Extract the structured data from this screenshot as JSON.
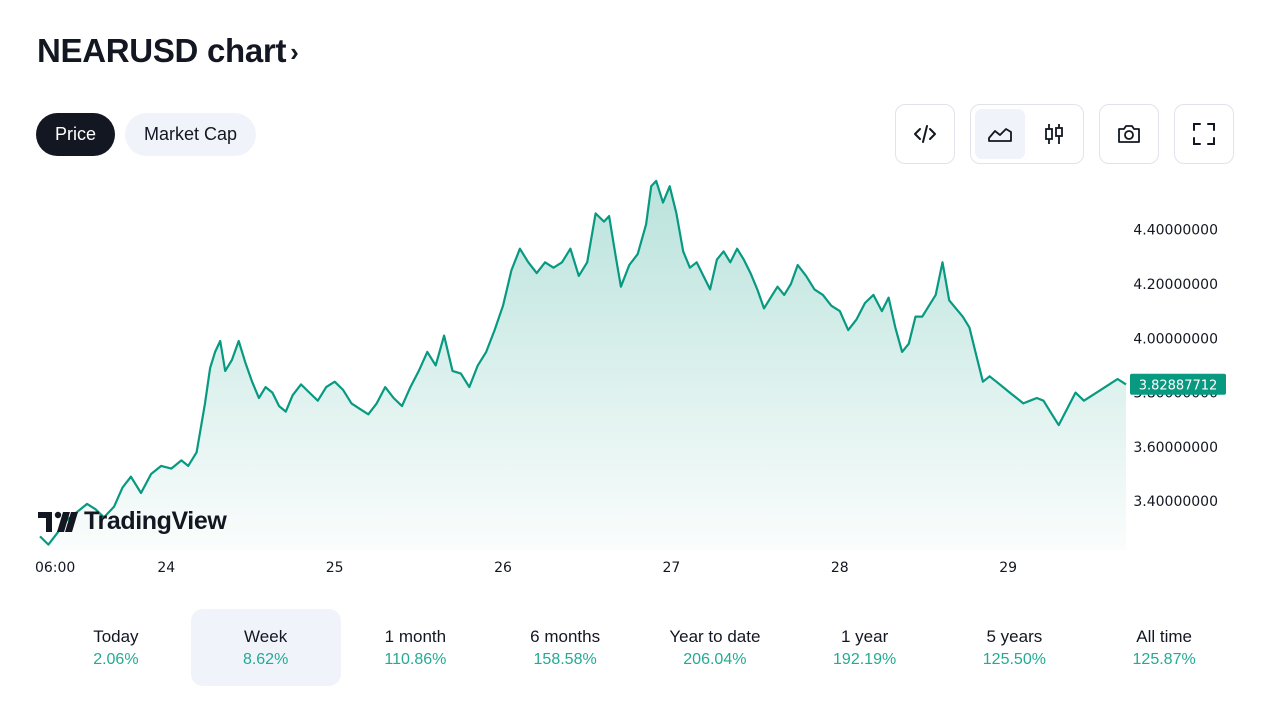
{
  "header": {
    "title": "NEARUSD chart",
    "chevron": "›"
  },
  "tabs": [
    {
      "label": "Price",
      "active": true
    },
    {
      "label": "Market Cap",
      "active": false
    }
  ],
  "toolbar": {
    "embed_icon": "code-icon",
    "area_icon": "area-chart-icon",
    "candles_icon": "candlestick-icon",
    "snapshot_icon": "camera-icon",
    "fullscreen_icon": "fullscreen-icon"
  },
  "logo": {
    "text": "TradingView"
  },
  "colors": {
    "line": "#089981",
    "positive": "#22ab94",
    "dark": "#131722",
    "active_bg": "#f0f3fa"
  },
  "chart_data": {
    "type": "area",
    "symbol": "NEARUSD",
    "x_ticks": [
      "06:00",
      "24",
      "25",
      "26",
      "27",
      "28",
      "29"
    ],
    "y_ticks": [
      "3.40000000",
      "3.60000000",
      "3.80000000",
      "4.00000000",
      "4.20000000",
      "4.40000000"
    ],
    "ylim": [
      3.22,
      4.62
    ],
    "x_range_days": [
      0,
      6.45
    ],
    "last_price": "3.82887712",
    "grid": false,
    "series": [
      {
        "points": [
          [
            0.0,
            3.27
          ],
          [
            0.05,
            3.24
          ],
          [
            0.1,
            3.28
          ],
          [
            0.16,
            3.33
          ],
          [
            0.22,
            3.36
          ],
          [
            0.28,
            3.39
          ],
          [
            0.33,
            3.37
          ],
          [
            0.38,
            3.34
          ],
          [
            0.44,
            3.38
          ],
          [
            0.49,
            3.45
          ],
          [
            0.54,
            3.49
          ],
          [
            0.6,
            3.43
          ],
          [
            0.66,
            3.5
          ],
          [
            0.72,
            3.53
          ],
          [
            0.78,
            3.52
          ],
          [
            0.84,
            3.55
          ],
          [
            0.88,
            3.53
          ],
          [
            0.93,
            3.58
          ],
          [
            0.98,
            3.76
          ],
          [
            1.01,
            3.89
          ],
          [
            1.04,
            3.95
          ],
          [
            1.07,
            3.99
          ],
          [
            1.1,
            3.88
          ],
          [
            1.14,
            3.92
          ],
          [
            1.18,
            3.99
          ],
          [
            1.22,
            3.91
          ],
          [
            1.26,
            3.84
          ],
          [
            1.3,
            3.78
          ],
          [
            1.34,
            3.82
          ],
          [
            1.38,
            3.8
          ],
          [
            1.42,
            3.75
          ],
          [
            1.46,
            3.73
          ],
          [
            1.5,
            3.79
          ],
          [
            1.55,
            3.83
          ],
          [
            1.6,
            3.8
          ],
          [
            1.65,
            3.77
          ],
          [
            1.7,
            3.82
          ],
          [
            1.75,
            3.84
          ],
          [
            1.8,
            3.81
          ],
          [
            1.85,
            3.76
          ],
          [
            1.9,
            3.74
          ],
          [
            1.95,
            3.72
          ],
          [
            2.0,
            3.76
          ],
          [
            2.05,
            3.82
          ],
          [
            2.1,
            3.78
          ],
          [
            2.15,
            3.75
          ],
          [
            2.2,
            3.82
          ],
          [
            2.25,
            3.88
          ],
          [
            2.3,
            3.95
          ],
          [
            2.35,
            3.9
          ],
          [
            2.4,
            4.01
          ],
          [
            2.45,
            3.88
          ],
          [
            2.5,
            3.87
          ],
          [
            2.55,
            3.82
          ],
          [
            2.6,
            3.9
          ],
          [
            2.65,
            3.95
          ],
          [
            2.7,
            4.03
          ],
          [
            2.75,
            4.12
          ],
          [
            2.8,
            4.25
          ],
          [
            2.85,
            4.33
          ],
          [
            2.9,
            4.28
          ],
          [
            2.95,
            4.24
          ],
          [
            3.0,
            4.28
          ],
          [
            3.05,
            4.26
          ],
          [
            3.1,
            4.28
          ],
          [
            3.15,
            4.33
          ],
          [
            3.2,
            4.23
          ],
          [
            3.25,
            4.28
          ],
          [
            3.3,
            4.46
          ],
          [
            3.35,
            4.43
          ],
          [
            3.38,
            4.45
          ],
          [
            3.42,
            4.3
          ],
          [
            3.45,
            4.19
          ],
          [
            3.5,
            4.27
          ],
          [
            3.55,
            4.31
          ],
          [
            3.6,
            4.42
          ],
          [
            3.63,
            4.56
          ],
          [
            3.66,
            4.58
          ],
          [
            3.7,
            4.5
          ],
          [
            3.74,
            4.56
          ],
          [
            3.78,
            4.46
          ],
          [
            3.82,
            4.32
          ],
          [
            3.86,
            4.26
          ],
          [
            3.9,
            4.28
          ],
          [
            3.94,
            4.23
          ],
          [
            3.98,
            4.18
          ],
          [
            4.02,
            4.29
          ],
          [
            4.06,
            4.32
          ],
          [
            4.1,
            4.28
          ],
          [
            4.14,
            4.33
          ],
          [
            4.18,
            4.29
          ],
          [
            4.22,
            4.24
          ],
          [
            4.26,
            4.18
          ],
          [
            4.3,
            4.11
          ],
          [
            4.34,
            4.15
          ],
          [
            4.38,
            4.19
          ],
          [
            4.42,
            4.16
          ],
          [
            4.46,
            4.2
          ],
          [
            4.5,
            4.27
          ],
          [
            4.55,
            4.23
          ],
          [
            4.6,
            4.18
          ],
          [
            4.65,
            4.16
          ],
          [
            4.7,
            4.12
          ],
          [
            4.75,
            4.1
          ],
          [
            4.8,
            4.03
          ],
          [
            4.85,
            4.07
          ],
          [
            4.9,
            4.13
          ],
          [
            4.95,
            4.16
          ],
          [
            5.0,
            4.1
          ],
          [
            5.04,
            4.15
          ],
          [
            5.08,
            4.04
          ],
          [
            5.12,
            3.95
          ],
          [
            5.16,
            3.98
          ],
          [
            5.2,
            4.08
          ],
          [
            5.24,
            4.08
          ],
          [
            5.28,
            4.12
          ],
          [
            5.32,
            4.16
          ],
          [
            5.36,
            4.28
          ],
          [
            5.4,
            4.14
          ],
          [
            5.44,
            4.11
          ],
          [
            5.48,
            4.08
          ],
          [
            5.52,
            4.04
          ],
          [
            5.56,
            3.94
          ],
          [
            5.6,
            3.84
          ],
          [
            5.64,
            3.86
          ],
          [
            5.68,
            3.84
          ],
          [
            5.72,
            3.82
          ],
          [
            5.76,
            3.8
          ],
          [
            5.8,
            3.78
          ],
          [
            5.84,
            3.76
          ],
          [
            5.88,
            3.77
          ],
          [
            5.92,
            3.78
          ],
          [
            5.96,
            3.77
          ],
          [
            6.0,
            3.73
          ],
          [
            6.05,
            3.68
          ],
          [
            6.1,
            3.74
          ],
          [
            6.15,
            3.8
          ],
          [
            6.2,
            3.77
          ],
          [
            6.25,
            3.79
          ],
          [
            6.3,
            3.81
          ],
          [
            6.35,
            3.83
          ],
          [
            6.4,
            3.85
          ],
          [
            6.45,
            3.83
          ]
        ]
      }
    ]
  },
  "periods": [
    {
      "label": "Today",
      "change": "2.06%",
      "active": false
    },
    {
      "label": "Week",
      "change": "8.62%",
      "active": true
    },
    {
      "label": "1 month",
      "change": "110.86%",
      "active": false
    },
    {
      "label": "6 months",
      "change": "158.58%",
      "active": false
    },
    {
      "label": "Year to date",
      "change": "206.04%",
      "active": false
    },
    {
      "label": "1 year",
      "change": "192.19%",
      "active": false
    },
    {
      "label": "5 years",
      "change": "125.50%",
      "active": false
    },
    {
      "label": "All time",
      "change": "125.87%",
      "active": false
    }
  ]
}
